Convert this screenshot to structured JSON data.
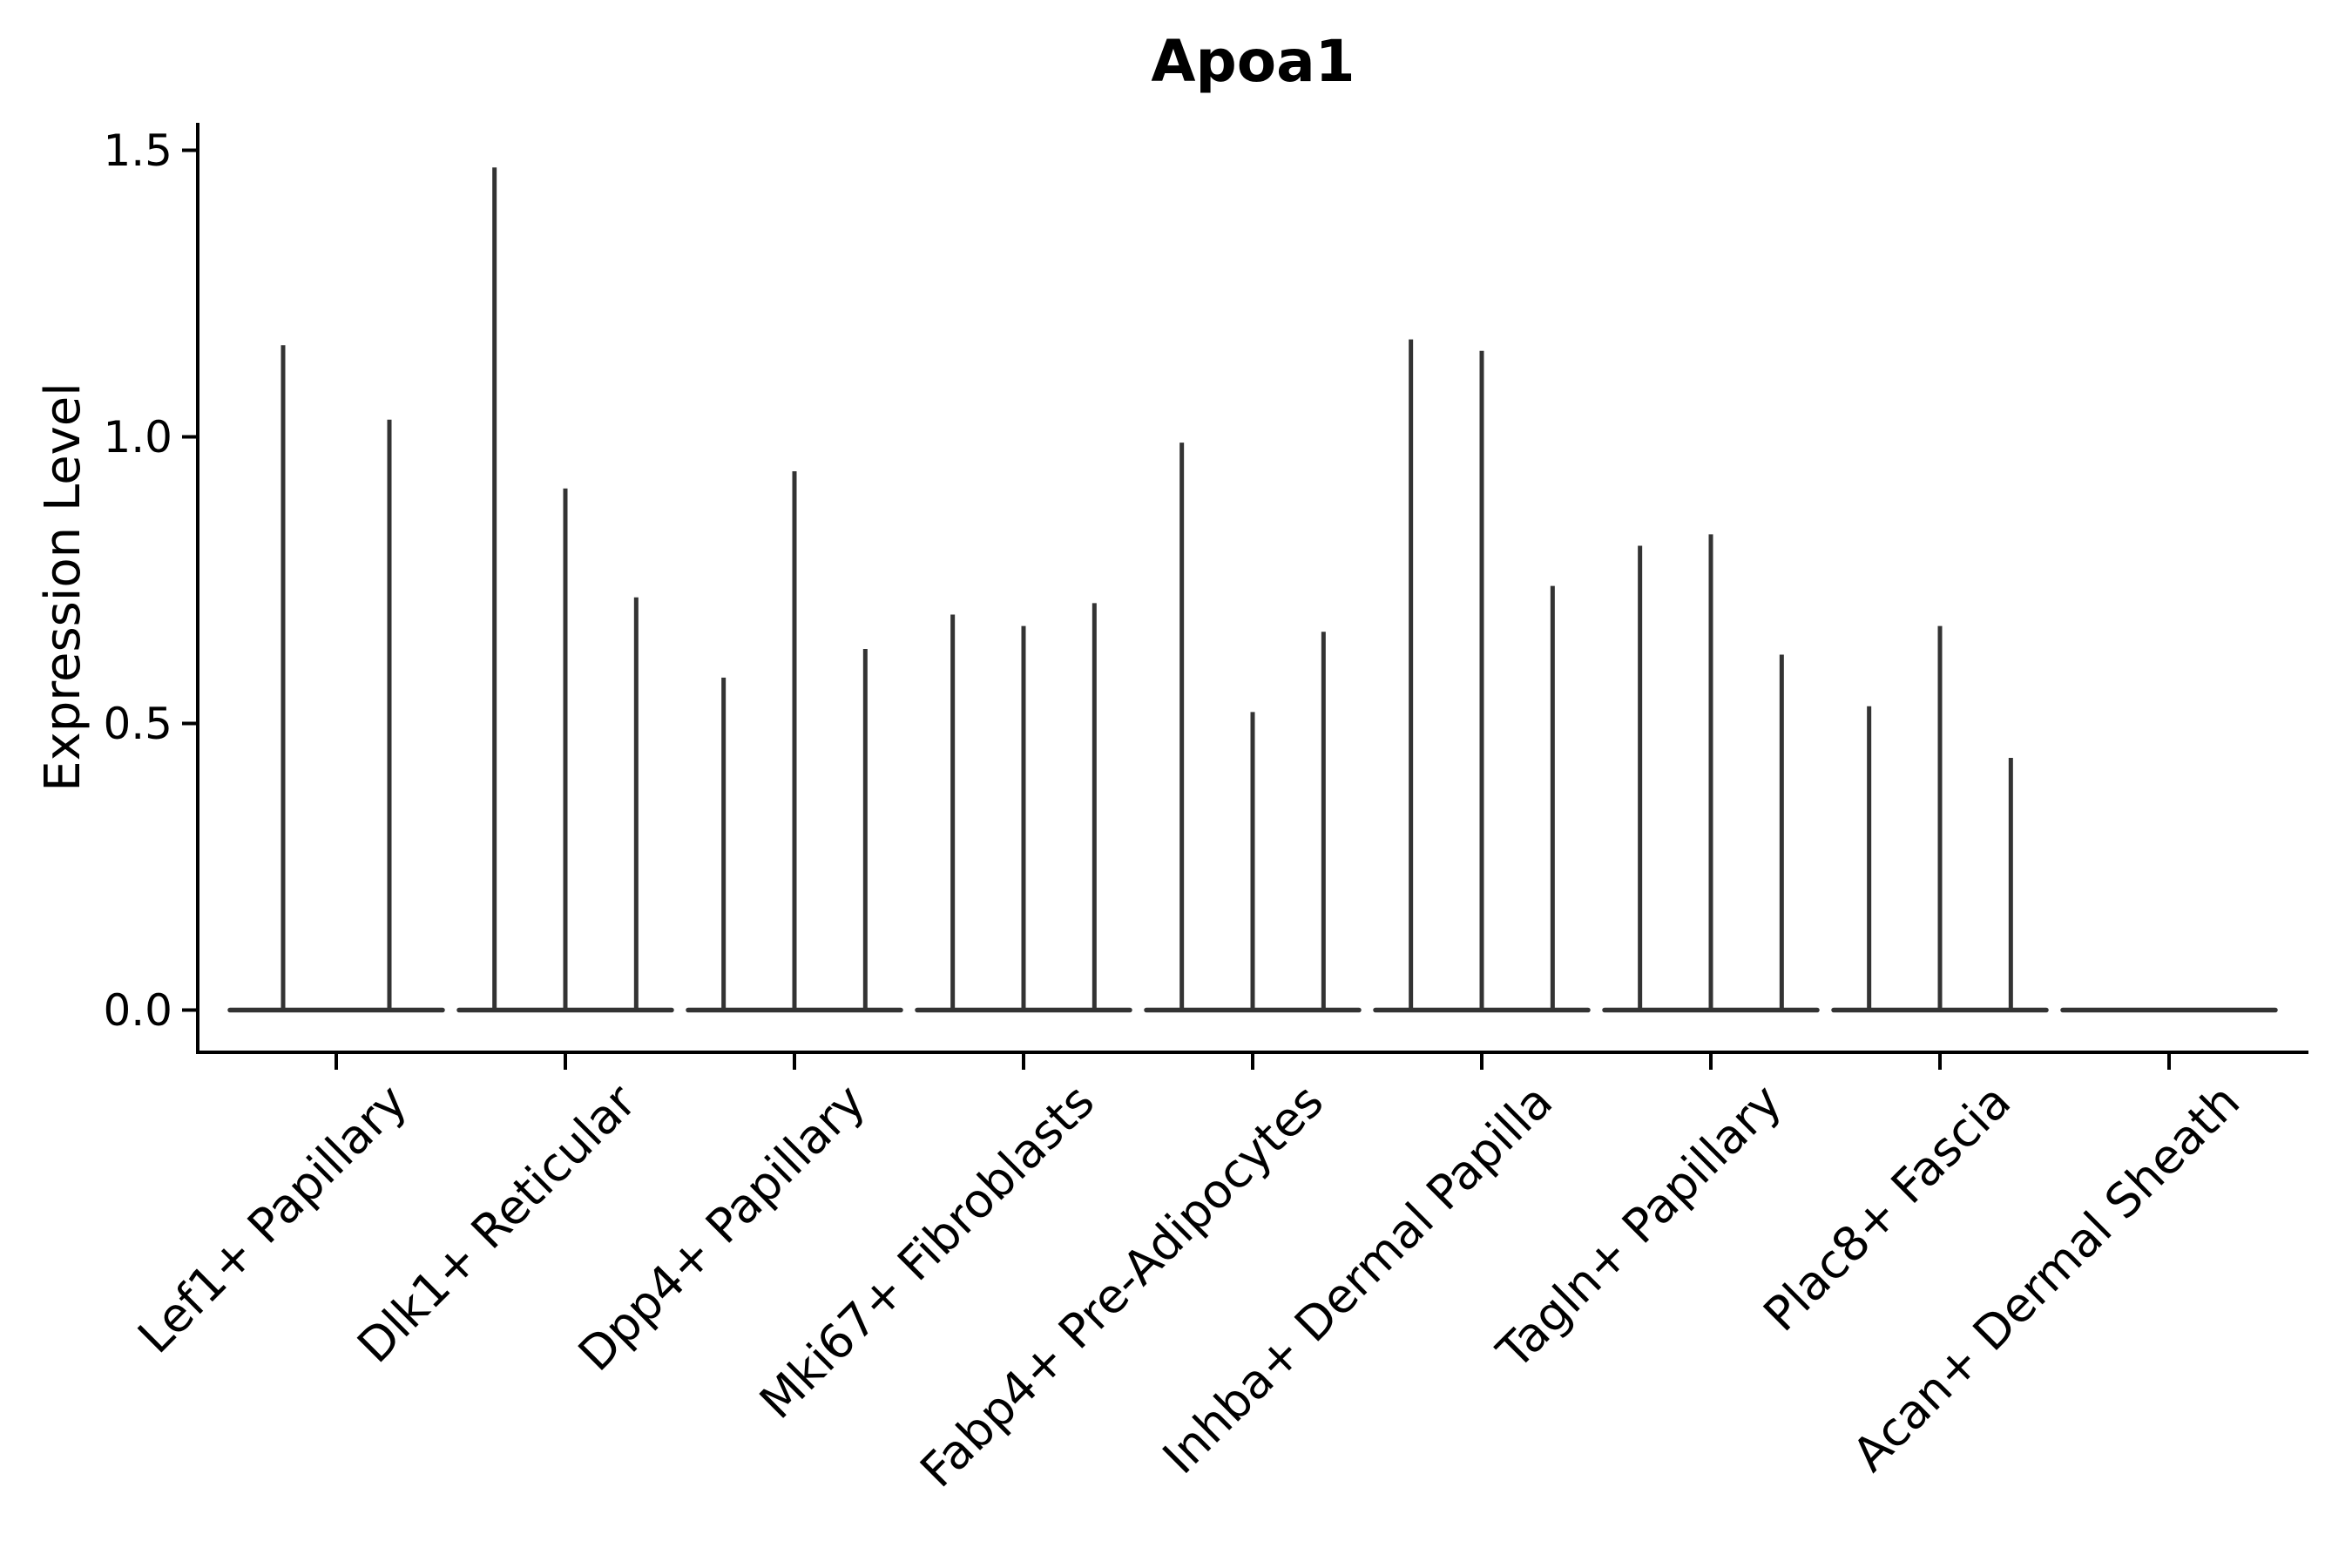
{
  "chart_data": {
    "type": "violin",
    "title": "Apoa1",
    "xlabel": "",
    "ylabel": "Expression Level",
    "ylim": [
      0.0,
      1.5
    ],
    "yticks": [
      0.0,
      0.5,
      1.0,
      1.5
    ],
    "ytick_labels": [
      "0.0",
      "0.5",
      "1.0",
      "1.5"
    ],
    "grid": false,
    "legend": null,
    "categories": [
      "Lef1+ Papillary",
      "Dlk1+ Reticular",
      "Dpp4+ Papillary",
      "Mki67+ Fibroblasts",
      "Fabp4+ Pre-Adipocytes",
      "Inhba+ Dermal Papilla",
      "Tagln+ Papillary",
      "Plac8+ Fascia",
      "Acan+ Dermal Sheath"
    ],
    "groups": [
      {
        "category": "Lef1+ Papillary",
        "violin_peaks": [
          1.16,
          1.03
        ]
      },
      {
        "category": "Dlk1+ Reticular",
        "violin_peaks": [
          1.47,
          0.91,
          0.72
        ]
      },
      {
        "category": "Dpp4+ Papillary",
        "violin_peaks": [
          0.58,
          0.94,
          0.63
        ]
      },
      {
        "category": "Mki67+ Fibroblasts",
        "violin_peaks": [
          0.69,
          0.67,
          0.71
        ]
      },
      {
        "category": "Fabp4+ Pre-Adipocytes",
        "violin_peaks": [
          0.99,
          0.52,
          0.66
        ]
      },
      {
        "category": "Inhba+ Dermal Papilla",
        "violin_peaks": [
          1.17,
          1.15,
          0.74
        ]
      },
      {
        "category": "Tagln+ Papillary",
        "violin_peaks": [
          0.81,
          0.83,
          0.62
        ]
      },
      {
        "category": "Plac8+ Fascia",
        "violin_peaks": [
          0.53,
          0.67,
          0.44
        ]
      },
      {
        "category": "Acan+ Dermal Sheath",
        "violin_peaks": []
      }
    ],
    "baseline_value": 0.0
  },
  "colors": {
    "background": "#ffffff",
    "violin": "#333333",
    "axis": "#000000",
    "text": "#000000"
  }
}
